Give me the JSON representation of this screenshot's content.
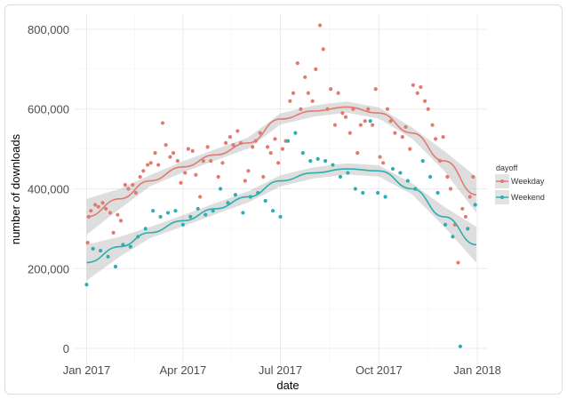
{
  "chart_data": {
    "type": "scatter",
    "title": "",
    "xlabel": "date",
    "ylabel": "number of downloads",
    "xlim": [
      "2016-12-20",
      "2018-01-10"
    ],
    "ylim": [
      -40000,
      840000
    ],
    "x_ticks": [
      {
        "date": "2017-01-01",
        "label": "Jan 2017"
      },
      {
        "date": "2017-04-01",
        "label": "Apr 2017"
      },
      {
        "date": "2017-07-01",
        "label": "Jul 2017"
      },
      {
        "date": "2017-10-01",
        "label": "Oct 2017"
      },
      {
        "date": "2018-01-01",
        "label": "Jan 2018"
      }
    ],
    "y_ticks": [
      {
        "value": 0,
        "label": "0"
      },
      {
        "value": 200000,
        "label": "200,000"
      },
      {
        "value": 400000,
        "label": "400,000"
      },
      {
        "value": 600000,
        "label": "600,000"
      },
      {
        "value": 800000,
        "label": "800,000"
      }
    ],
    "grid": true,
    "legend": {
      "title": "dayoff",
      "position": "right"
    },
    "series": [
      {
        "name": "Weekday",
        "color": "#e07b72",
        "points": [
          [
            "2017-01-02",
            265000
          ],
          [
            "2017-01-03",
            330000
          ],
          [
            "2017-01-05",
            345000
          ],
          [
            "2017-01-09",
            360000
          ],
          [
            "2017-01-12",
            355000
          ],
          [
            "2017-01-16",
            365000
          ],
          [
            "2017-01-19",
            350000
          ],
          [
            "2017-01-23",
            340000
          ],
          [
            "2017-01-26",
            290000
          ],
          [
            "2017-01-30",
            335000
          ],
          [
            "2017-02-02",
            320000
          ],
          [
            "2017-02-06",
            410000
          ],
          [
            "2017-02-09",
            400000
          ],
          [
            "2017-02-13",
            410000
          ],
          [
            "2017-02-16",
            390000
          ],
          [
            "2017-02-20",
            430000
          ],
          [
            "2017-02-23",
            445000
          ],
          [
            "2017-02-27",
            460000
          ],
          [
            "2017-03-02",
            465000
          ],
          [
            "2017-03-06",
            490000
          ],
          [
            "2017-03-09",
            460000
          ],
          [
            "2017-03-13",
            565000
          ],
          [
            "2017-03-16",
            510000
          ],
          [
            "2017-03-20",
            480000
          ],
          [
            "2017-03-23",
            490000
          ],
          [
            "2017-03-27",
            470000
          ],
          [
            "2017-03-30",
            415000
          ],
          [
            "2017-04-03",
            440000
          ],
          [
            "2017-04-06",
            500000
          ],
          [
            "2017-04-10",
            495000
          ],
          [
            "2017-04-13",
            435000
          ],
          [
            "2017-04-17",
            380000
          ],
          [
            "2017-04-20",
            470000
          ],
          [
            "2017-04-24",
            505000
          ],
          [
            "2017-04-27",
            470000
          ],
          [
            "2017-05-04",
            430000
          ],
          [
            "2017-05-08",
            465000
          ],
          [
            "2017-05-11",
            515000
          ],
          [
            "2017-05-15",
            530000
          ],
          [
            "2017-05-18",
            510000
          ],
          [
            "2017-05-22",
            545000
          ],
          [
            "2017-05-25",
            515000
          ],
          [
            "2017-05-29",
            420000
          ],
          [
            "2017-06-01",
            445000
          ],
          [
            "2017-06-05",
            505000
          ],
          [
            "2017-06-08",
            520000
          ],
          [
            "2017-06-12",
            540000
          ],
          [
            "2017-06-15",
            430000
          ],
          [
            "2017-06-19",
            505000
          ],
          [
            "2017-06-22",
            490000
          ],
          [
            "2017-06-26",
            525000
          ],
          [
            "2017-06-29",
            465000
          ],
          [
            "2017-07-03",
            500000
          ],
          [
            "2017-07-06",
            520000
          ],
          [
            "2017-07-10",
            620000
          ],
          [
            "2017-07-13",
            640000
          ],
          [
            "2017-07-17",
            715000
          ],
          [
            "2017-07-20",
            600000
          ],
          [
            "2017-07-24",
            680000
          ],
          [
            "2017-07-27",
            640000
          ],
          [
            "2017-07-31",
            620000
          ],
          [
            "2017-08-03",
            700000
          ],
          [
            "2017-08-07",
            810000
          ],
          [
            "2017-08-10",
            750000
          ],
          [
            "2017-08-14",
            600000
          ],
          [
            "2017-08-17",
            650000
          ],
          [
            "2017-08-21",
            560000
          ],
          [
            "2017-08-24",
            640000
          ],
          [
            "2017-08-28",
            590000
          ],
          [
            "2017-08-31",
            580000
          ],
          [
            "2017-09-04",
            540000
          ],
          [
            "2017-09-07",
            600000
          ],
          [
            "2017-09-11",
            490000
          ],
          [
            "2017-09-14",
            560000
          ],
          [
            "2017-09-18",
            570000
          ],
          [
            "2017-09-21",
            600000
          ],
          [
            "2017-09-25",
            560000
          ],
          [
            "2017-09-28",
            650000
          ],
          [
            "2017-10-02",
            480000
          ],
          [
            "2017-10-05",
            465000
          ],
          [
            "2017-10-09",
            600000
          ],
          [
            "2017-10-12",
            570000
          ],
          [
            "2017-10-16",
            540000
          ],
          [
            "2017-10-23",
            530000
          ],
          [
            "2017-10-26",
            555000
          ],
          [
            "2017-10-30",
            500000
          ],
          [
            "2017-11-02",
            660000
          ],
          [
            "2017-11-06",
            640000
          ],
          [
            "2017-11-09",
            655000
          ],
          [
            "2017-11-13",
            620000
          ],
          [
            "2017-11-16",
            600000
          ],
          [
            "2017-11-20",
            560000
          ],
          [
            "2017-11-23",
            525000
          ],
          [
            "2017-11-27",
            470000
          ],
          [
            "2017-11-30",
            530000
          ],
          [
            "2017-12-04",
            430000
          ],
          [
            "2017-12-07",
            400000
          ],
          [
            "2017-12-11",
            310000
          ],
          [
            "2017-12-14",
            215000
          ],
          [
            "2017-12-18",
            350000
          ],
          [
            "2017-12-21",
            330000
          ],
          [
            "2017-12-25",
            380000
          ],
          [
            "2017-12-28",
            430000
          ]
        ],
        "smooth": [
          [
            "2017-01-01",
            330000
          ],
          [
            "2017-02-01",
            375000
          ],
          [
            "2017-03-01",
            420000
          ],
          [
            "2017-04-01",
            455000
          ],
          [
            "2017-05-01",
            485000
          ],
          [
            "2017-06-01",
            515000
          ],
          [
            "2017-07-01",
            575000
          ],
          [
            "2017-08-01",
            595000
          ],
          [
            "2017-09-01",
            605000
          ],
          [
            "2017-10-01",
            590000
          ],
          [
            "2017-11-01",
            540000
          ],
          [
            "2017-12-01",
            470000
          ],
          [
            "2017-12-31",
            385000
          ]
        ]
      },
      {
        "name": "Weekend",
        "color": "#2eaeb0",
        "points": [
          [
            "2017-01-01",
            160000
          ],
          [
            "2017-01-07",
            250000
          ],
          [
            "2017-01-14",
            245000
          ],
          [
            "2017-01-21",
            230000
          ],
          [
            "2017-01-28",
            205000
          ],
          [
            "2017-02-04",
            260000
          ],
          [
            "2017-02-11",
            255000
          ],
          [
            "2017-02-18",
            280000
          ],
          [
            "2017-02-25",
            300000
          ],
          [
            "2017-03-04",
            345000
          ],
          [
            "2017-03-11",
            330000
          ],
          [
            "2017-03-18",
            340000
          ],
          [
            "2017-03-25",
            345000
          ],
          [
            "2017-04-01",
            310000
          ],
          [
            "2017-04-08",
            330000
          ],
          [
            "2017-04-15",
            350000
          ],
          [
            "2017-04-22",
            335000
          ],
          [
            "2017-04-29",
            345000
          ],
          [
            "2017-05-06",
            400000
          ],
          [
            "2017-05-13",
            365000
          ],
          [
            "2017-05-20",
            385000
          ],
          [
            "2017-05-27",
            340000
          ],
          [
            "2017-06-03",
            380000
          ],
          [
            "2017-06-10",
            390000
          ],
          [
            "2017-06-17",
            370000
          ],
          [
            "2017-06-24",
            345000
          ],
          [
            "2017-07-01",
            330000
          ],
          [
            "2017-07-08",
            520000
          ],
          [
            "2017-07-15",
            540000
          ],
          [
            "2017-07-22",
            490000
          ],
          [
            "2017-07-29",
            470000
          ],
          [
            "2017-08-05",
            475000
          ],
          [
            "2017-08-12",
            470000
          ],
          [
            "2017-08-19",
            460000
          ],
          [
            "2017-08-26",
            430000
          ],
          [
            "2017-09-02",
            440000
          ],
          [
            "2017-09-09",
            400000
          ],
          [
            "2017-09-16",
            390000
          ],
          [
            "2017-09-23",
            570000
          ],
          [
            "2017-09-30",
            390000
          ],
          [
            "2017-10-07",
            380000
          ],
          [
            "2017-10-14",
            450000
          ],
          [
            "2017-10-21",
            440000
          ],
          [
            "2017-10-28",
            420000
          ],
          [
            "2017-11-04",
            400000
          ],
          [
            "2017-11-11",
            470000
          ],
          [
            "2017-11-18",
            430000
          ],
          [
            "2017-11-25",
            390000
          ],
          [
            "2017-12-02",
            310000
          ],
          [
            "2017-12-09",
            280000
          ],
          [
            "2017-12-16",
            5000
          ],
          [
            "2017-12-23",
            300000
          ],
          [
            "2017-12-30",
            360000
          ]
        ],
        "smooth": [
          [
            "2017-01-01",
            215000
          ],
          [
            "2017-02-01",
            255000
          ],
          [
            "2017-03-01",
            290000
          ],
          [
            "2017-04-01",
            320000
          ],
          [
            "2017-05-01",
            350000
          ],
          [
            "2017-06-01",
            380000
          ],
          [
            "2017-07-01",
            420000
          ],
          [
            "2017-08-01",
            440000
          ],
          [
            "2017-09-01",
            450000
          ],
          [
            "2017-10-01",
            445000
          ],
          [
            "2017-11-01",
            400000
          ],
          [
            "2017-12-01",
            330000
          ],
          [
            "2017-12-31",
            260000
          ]
        ]
      }
    ]
  }
}
